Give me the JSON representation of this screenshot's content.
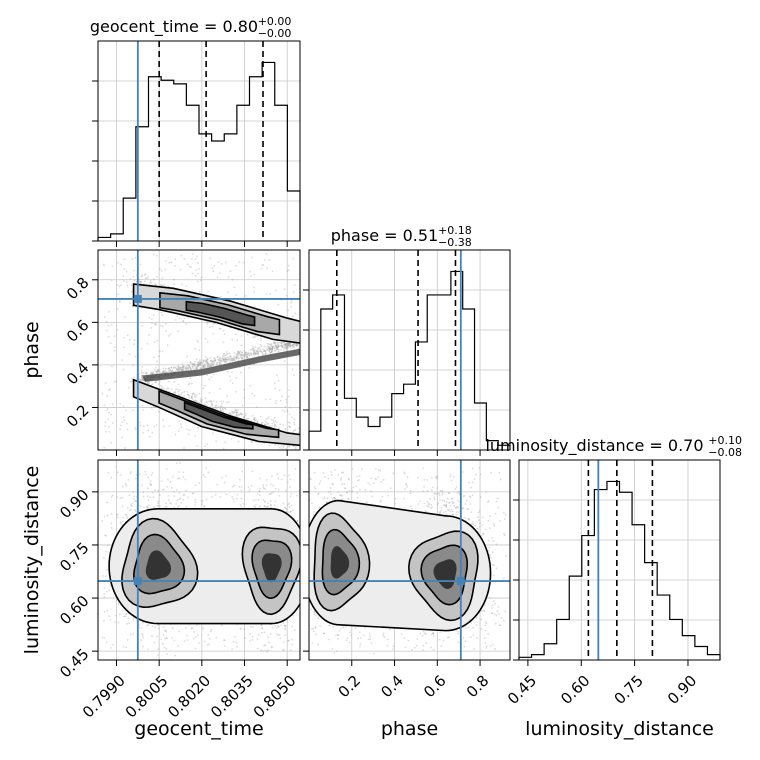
{
  "chart_data": {
    "type": "corner",
    "parameters": [
      "geocent_time",
      "phase",
      "luminosity_distance"
    ],
    "axis_labels": {
      "geocent_time": "geocent_time",
      "phase": "phase",
      "luminosity_distance": "luminosity_distance"
    },
    "titles": [
      {
        "parameter": "geocent_time",
        "text": "geocent_time = 0.80",
        "plus": "+0.00",
        "minus": "−0.00"
      },
      {
        "parameter": "phase",
        "text": "phase = 0.51",
        "plus": "+0.18",
        "minus": "−0.38"
      },
      {
        "parameter": "luminosity_distance",
        "text": "luminosity_distance = 0.70",
        "plus": "+0.10",
        "minus": "−0.08"
      }
    ],
    "ranges": {
      "geocent_time": [
        0.79835,
        0.80545
      ],
      "phase": [
        0.0,
        0.94
      ],
      "luminosity_distance": [
        0.425,
        0.99
      ]
    },
    "ticks": {
      "geocent_time": [
        "0.7990",
        "0.8005",
        "0.8020",
        "0.8035",
        "0.8050"
      ],
      "phase": [
        "0.2",
        "0.4",
        "0.6",
        "0.8"
      ],
      "luminosity_distance": [
        "0.45",
        "0.60",
        "0.75",
        "0.90"
      ]
    },
    "injection": {
      "geocent_time": 0.79975,
      "phase": 0.71,
      "luminosity_distance": 0.648
    },
    "quantiles": {
      "geocent_time": [
        0.8005,
        0.80215,
        0.80415
      ],
      "phase": [
        0.13,
        0.51,
        0.685
      ],
      "luminosity_distance": [
        0.62,
        0.7,
        0.8
      ]
    },
    "histograms": {
      "geocent_time": [
        1,
        2,
        12,
        32,
        46,
        45,
        44,
        38,
        30,
        28,
        30,
        38,
        46,
        50,
        38,
        14
      ],
      "phase": [
        4,
        30,
        33,
        11,
        7,
        5,
        7,
        12,
        14,
        23,
        33,
        33,
        38,
        30,
        10,
        2,
        1
      ],
      "luminosity_distance": [
        1,
        2,
        6,
        15,
        31,
        46,
        63,
        66,
        62,
        50,
        36,
        24,
        15,
        9,
        5,
        2
      ]
    },
    "grid": true,
    "colors": {
      "injection": "#4682b4",
      "hist": "#000000",
      "quantile": "#000000",
      "scatter": "#9a9a9a"
    }
  }
}
